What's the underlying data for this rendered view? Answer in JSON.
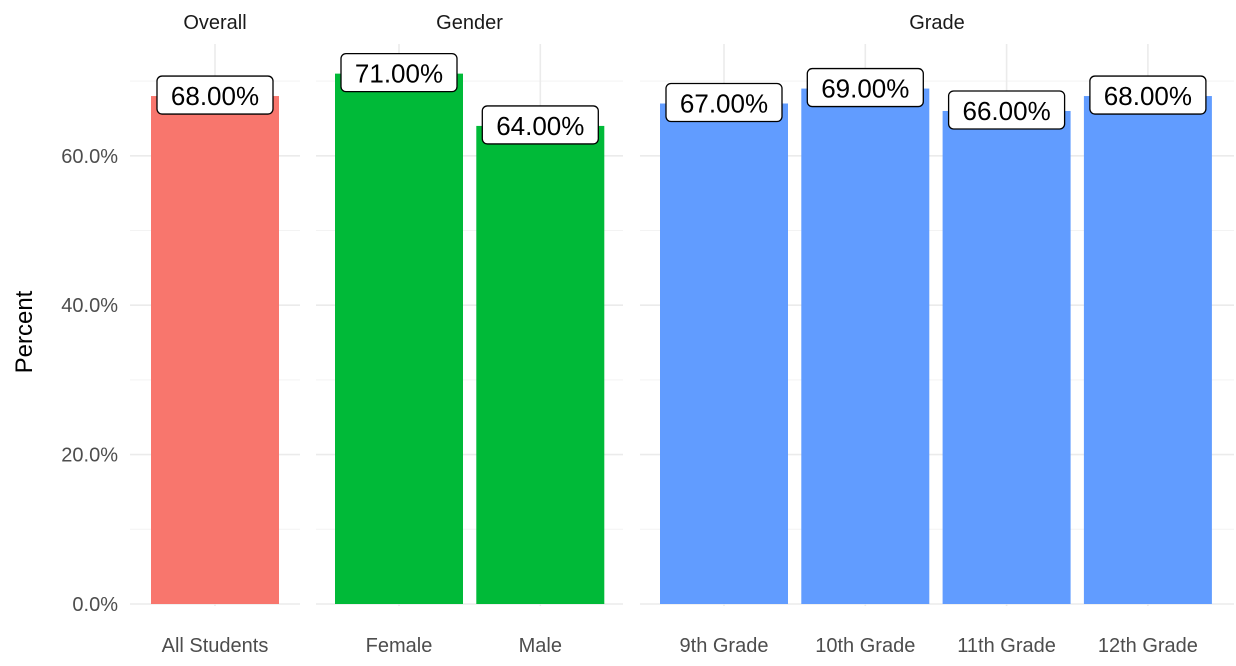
{
  "chart_data": {
    "type": "bar",
    "ylabel": "Percent",
    "ylim": [
      0,
      75
    ],
    "yticks": [
      {
        "value": 0,
        "label": "0.0%"
      },
      {
        "value": 20,
        "label": "20.0%"
      },
      {
        "value": 40,
        "label": "40.0%"
      },
      {
        "value": 60,
        "label": "60.0%"
      }
    ],
    "grid": true,
    "legend": "none",
    "panels": [
      {
        "title": "Overall",
        "color": "#F8766D",
        "bars": [
          {
            "category": "All Students",
            "value": 68,
            "label": "68.00%"
          }
        ]
      },
      {
        "title": "Gender",
        "color": "#00BA38",
        "bars": [
          {
            "category": "Female",
            "value": 71,
            "label": "71.00%"
          },
          {
            "category": "Male",
            "value": 64,
            "label": "64.00%"
          }
        ]
      },
      {
        "title": "Grade",
        "color": "#619CFF",
        "bars": [
          {
            "category": "9th Grade",
            "value": 67,
            "label": "67.00%"
          },
          {
            "category": "10th Grade",
            "value": 69,
            "label": "69.00%"
          },
          {
            "category": "11th Grade",
            "value": 66,
            "label": "66.00%"
          },
          {
            "category": "12th Grade",
            "value": 68,
            "label": "68.00%"
          }
        ]
      }
    ]
  }
}
